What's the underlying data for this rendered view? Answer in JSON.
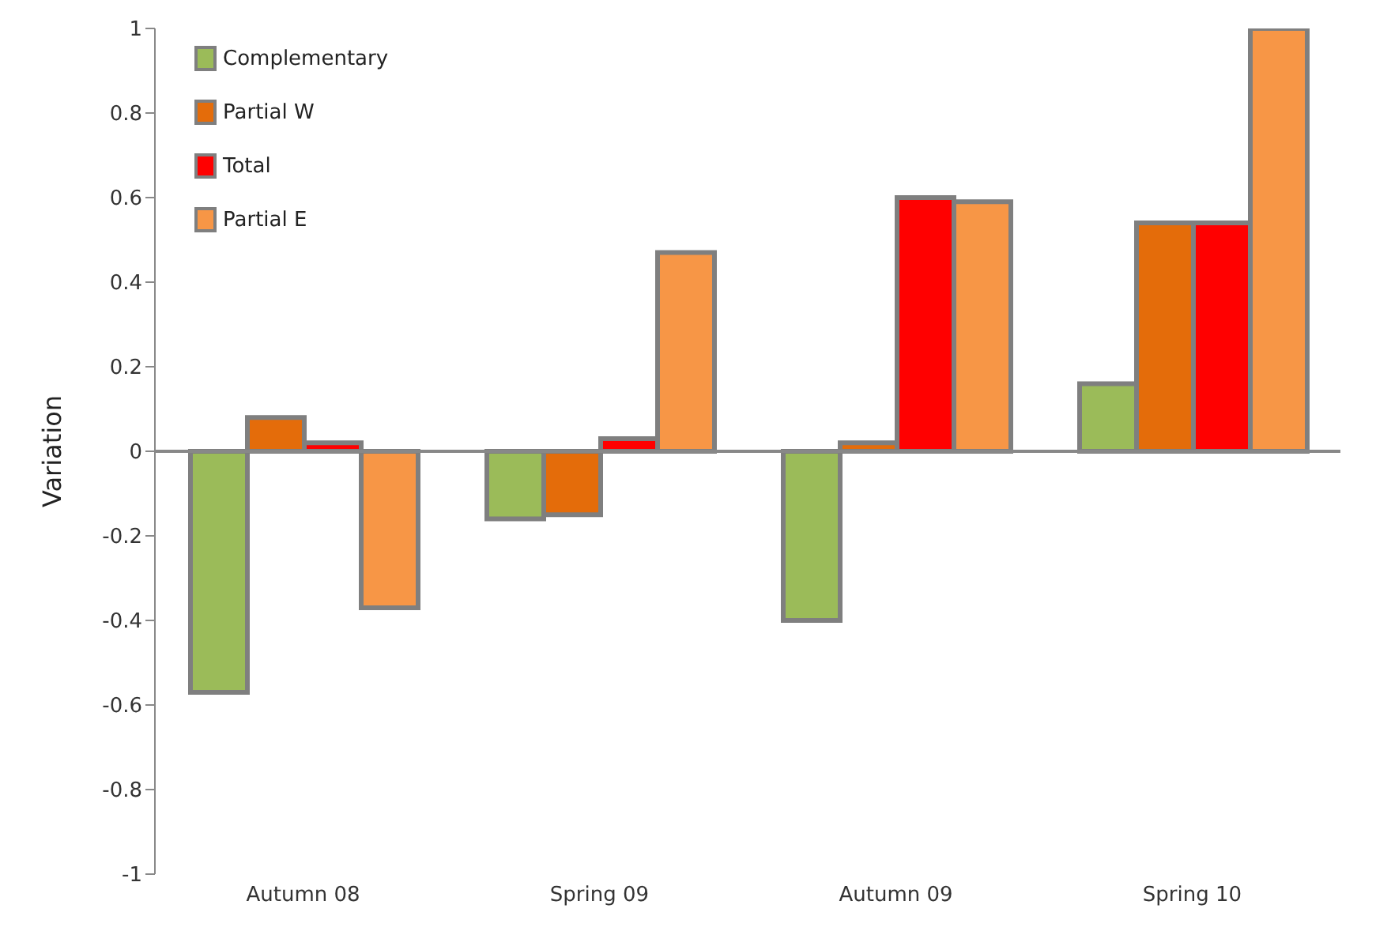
{
  "chart_data": {
    "type": "bar",
    "ylabel": "Variation",
    "categories": [
      "Autumn 08",
      "Spring 09",
      "Autumn 09",
      "Spring 10"
    ],
    "series": [
      {
        "name": "Complementary",
        "color": "#9bbb59",
        "values": [
          -0.57,
          -0.16,
          -0.4,
          0.16
        ]
      },
      {
        "name": "Partial W",
        "color": "#e46c0a",
        "values": [
          0.08,
          -0.15,
          0.02,
          0.54
        ]
      },
      {
        "name": "Total",
        "color": "#ff0000",
        "values": [
          0.02,
          0.03,
          0.6,
          0.54
        ]
      },
      {
        "name": "Partial E",
        "color": "#f79646",
        "values": [
          -0.37,
          0.47,
          0.59,
          1.0
        ]
      }
    ],
    "ylim": [
      -1,
      1
    ],
    "yticks": [
      -1,
      -0.8,
      -0.6,
      -0.4,
      -0.2,
      0,
      0.2,
      0.4,
      0.6,
      0.8,
      1
    ],
    "legend": "top left"
  }
}
